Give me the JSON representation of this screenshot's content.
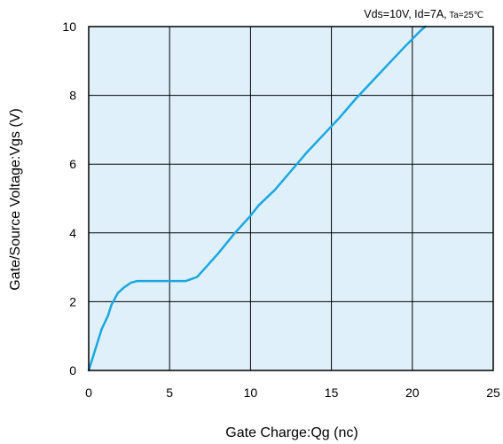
{
  "chart_data": {
    "type": "line",
    "title": "",
    "conditions": {
      "main": "Vds=10V, Id=7A,",
      "temp": " Ta=25℃"
    },
    "xlabel": "Gate Charge:Qg  (nc)",
    "ylabel": "Gate/Source Voltage:Vgs  (V)",
    "xlim": [
      0,
      25
    ],
    "ylim": [
      0,
      10
    ],
    "xticks": [
      "0",
      "5",
      "10",
      "15",
      "20",
      "25"
    ],
    "yticks": [
      "0",
      "2",
      "4",
      "6",
      "8",
      "10"
    ],
    "grid": true,
    "series": [
      {
        "x": [
          0,
          0.4,
          0.8,
          1.2,
          1.4,
          1.8,
          2.2,
          2.6,
          3.0,
          4.0,
          5.0,
          6.0,
          6.3,
          6.7,
          7.2,
          8.0,
          9.0,
          10.0,
          10.5,
          11.5,
          12.5,
          13.5,
          14.5,
          15.5,
          16.5,
          17.5,
          18.5,
          19.5,
          20.5,
          20.8
        ],
        "y": [
          0,
          0.6,
          1.2,
          1.6,
          1.9,
          2.25,
          2.42,
          2.55,
          2.6,
          2.6,
          2.6,
          2.6,
          2.65,
          2.72,
          2.98,
          3.4,
          3.98,
          4.5,
          4.8,
          5.25,
          5.8,
          6.35,
          6.85,
          7.35,
          7.9,
          8.4,
          8.9,
          9.4,
          9.88,
          10.0
        ]
      }
    ],
    "colors": {
      "plot_background": "#dff0fa",
      "line": "#1aa7e0",
      "grid": "#000000"
    }
  }
}
